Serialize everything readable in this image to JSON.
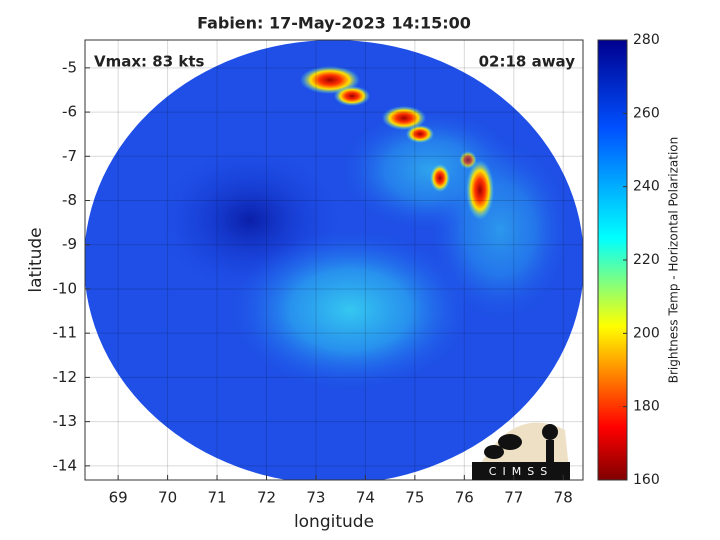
{
  "chart_data": {
    "type": "map",
    "title": "Fabien: 17-May-2023 14:15:00",
    "annotations": [
      "Vmax: 83 kts",
      "02:18 away"
    ],
    "x_label": "longitude",
    "y_label": "latitude",
    "xlim": [
      68.33,
      78.4
    ],
    "ylim": [
      -14.32,
      -4.37
    ],
    "xticks": [
      69,
      70,
      71,
      72,
      73,
      74,
      75,
      76,
      77,
      78
    ],
    "yticks": [
      -14,
      -13,
      -12,
      -11,
      -10,
      -9,
      -8,
      -7,
      -6,
      -5
    ],
    "grid": true,
    "colorbar": {
      "label": "Brightness Temp - Horizontal Polarization",
      "lim": [
        160,
        280
      ],
      "ticks": [
        160,
        180,
        200,
        220,
        240,
        260,
        280
      ]
    },
    "logo": "CIMSS"
  }
}
